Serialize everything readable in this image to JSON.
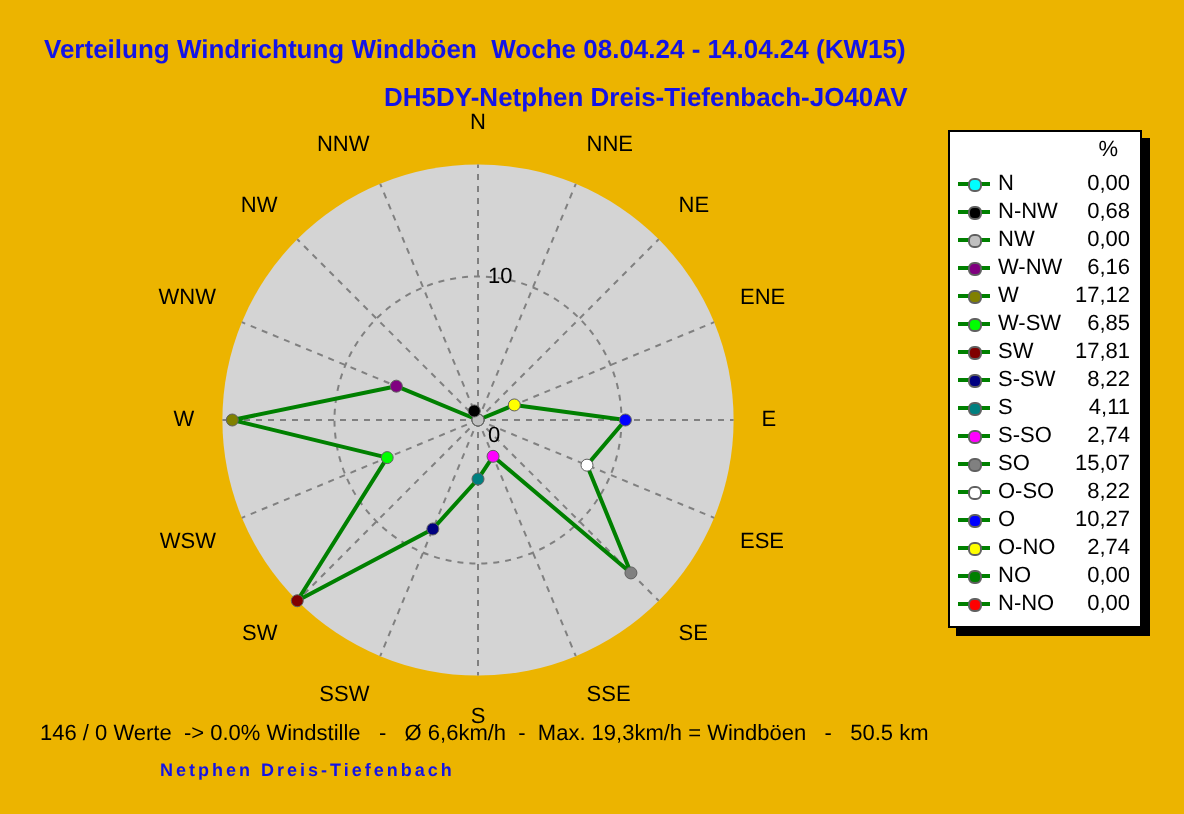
{
  "chart_data": {
    "type": "radar",
    "title": "Verteilung Windrichtung Windböen  Woche 08.04.24 - 14.04.24 (KW15)",
    "subtitle": "DH5DY-Netphen Dreis-Tiefenbach-JO40AV",
    "categories": [
      "N",
      "NNE",
      "NE",
      "ENE",
      "E",
      "ESE",
      "SE",
      "SSE",
      "S",
      "SSW",
      "SW",
      "WSW",
      "W",
      "WNW",
      "NW",
      "NNW"
    ],
    "series": [
      {
        "color": "#008000",
        "colors": [
          "#00ffff",
          "#ff0000",
          "#008000",
          "#ffff00",
          "#0000ff",
          "#ffffff",
          "#808080",
          "#ff00ff",
          "#008080",
          "#000080",
          "#800000",
          "#00ff00",
          "#808000",
          "#800080",
          "#c0c0c0",
          "#000000"
        ],
        "values": [
          0,
          0,
          0,
          2.74,
          10.27,
          8.22,
          15.07,
          2.74,
          4.11,
          8.22,
          17.81,
          6.85,
          17.12,
          6.16,
          0,
          0.68
        ]
      }
    ],
    "ylim": [
      0,
      17.81
    ],
    "yticks": [
      0,
      10
    ],
    "grid": true,
    "marker": "circle",
    "legend_title": "%",
    "annotations": [
      {
        "text": "N",
        "x": "N"
      },
      {
        "text": "0,00",
        "x": "N"
      },
      {
        "text": "N-NW",
        "x": "NNW"
      },
      {
        "text": "0,68",
        "x": "NNW"
      },
      {
        "text": "NW",
        "x": "NW"
      },
      {
        "text": "0,00",
        "x": "NW"
      },
      {
        "text": "W-NW",
        "x": "WNW"
      },
      {
        "text": "6,16",
        "x": "WNW"
      },
      {
        "text": "W",
        "x": "W"
      },
      {
        "text": "17,12",
        "x": "W"
      },
      {
        "text": "W-SW",
        "x": "WSW"
      },
      {
        "text": "6,85",
        "x": "WSW"
      },
      {
        "text": "SW",
        "x": "SW"
      },
      {
        "text": "17,81",
        "x": "SW"
      },
      {
        "text": "S-SW",
        "x": "SSW"
      },
      {
        "text": "8,22",
        "x": "SSW"
      },
      {
        "text": "S",
        "x": "S"
      },
      {
        "text": "4,11",
        "x": "S"
      },
      {
        "text": "S-SO",
        "x": "SSE"
      },
      {
        "text": "2,74",
        "x": "SSE"
      },
      {
        "text": "SO",
        "x": "SE"
      },
      {
        "text": "15,07",
        "x": "SE"
      },
      {
        "text": "O-SO",
        "x": "ESE"
      },
      {
        "text": "8,22",
        "x": "ESE"
      },
      {
        "text": "O",
        "x": "E"
      },
      {
        "text": "10,27",
        "x": "E"
      },
      {
        "text": "O-NO",
        "x": "ENE"
      },
      {
        "text": "2,74",
        "x": "ENE"
      },
      {
        "text": "NO",
        "x": "NE"
      },
      {
        "text": "0,00",
        "x": "NE"
      },
      {
        "text": "N-NO",
        "x": "NNE"
      },
      {
        "text": "0,00",
        "x": "NNE"
      },
      "146 / 0 Werte  -> 0.0% Windstille   -   Ø 6,6km/h  -  Max. 19,3km/h = Windböen   -   50.5 km",
      "Netphen Dreis-Tiefenbach"
    ]
  }
}
